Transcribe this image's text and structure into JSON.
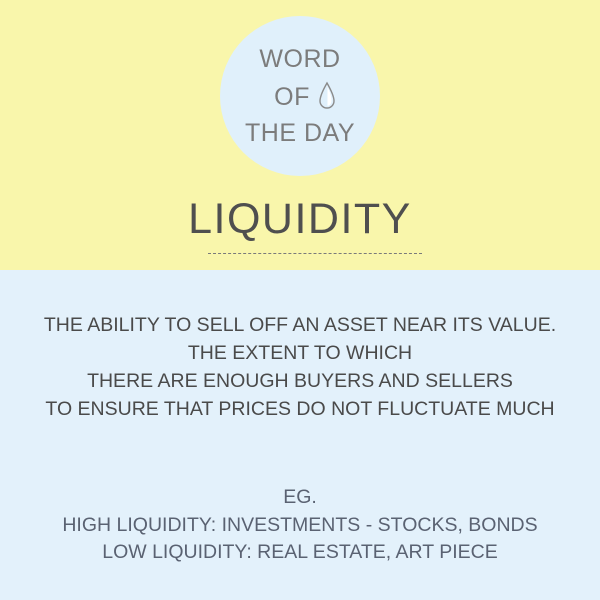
{
  "colors": {
    "top_background": "#f9f6ab",
    "bottom_background": "#e3f1fb",
    "badge_background": "#e0f0fb",
    "badge_text": "#7c7c7c",
    "title_text": "#4f4f4f",
    "body_text": "#4a4a4a",
    "example_text": "#5a6272"
  },
  "badge": {
    "line1": "WORD",
    "line2": "OF",
    "line3": "THE DAY",
    "icon": "drop-icon"
  },
  "title": "LIQUIDITY",
  "definition": {
    "lines": [
      "THE ABILITY TO SELL OFF AN ASSET NEAR ITS VALUE.",
      "THE EXTENT TO WHICH",
      "THERE ARE ENOUGH BUYERS AND SELLERS",
      "TO ENSURE THAT PRICES DO NOT FLUCTUATE MUCH"
    ]
  },
  "examples": {
    "heading": "EG.",
    "high": "HIGH LIQUIDITY: INVESTMENTS - STOCKS, BONDS",
    "low": "LOW LIQUIDITY: REAL ESTATE, ART PIECE"
  }
}
